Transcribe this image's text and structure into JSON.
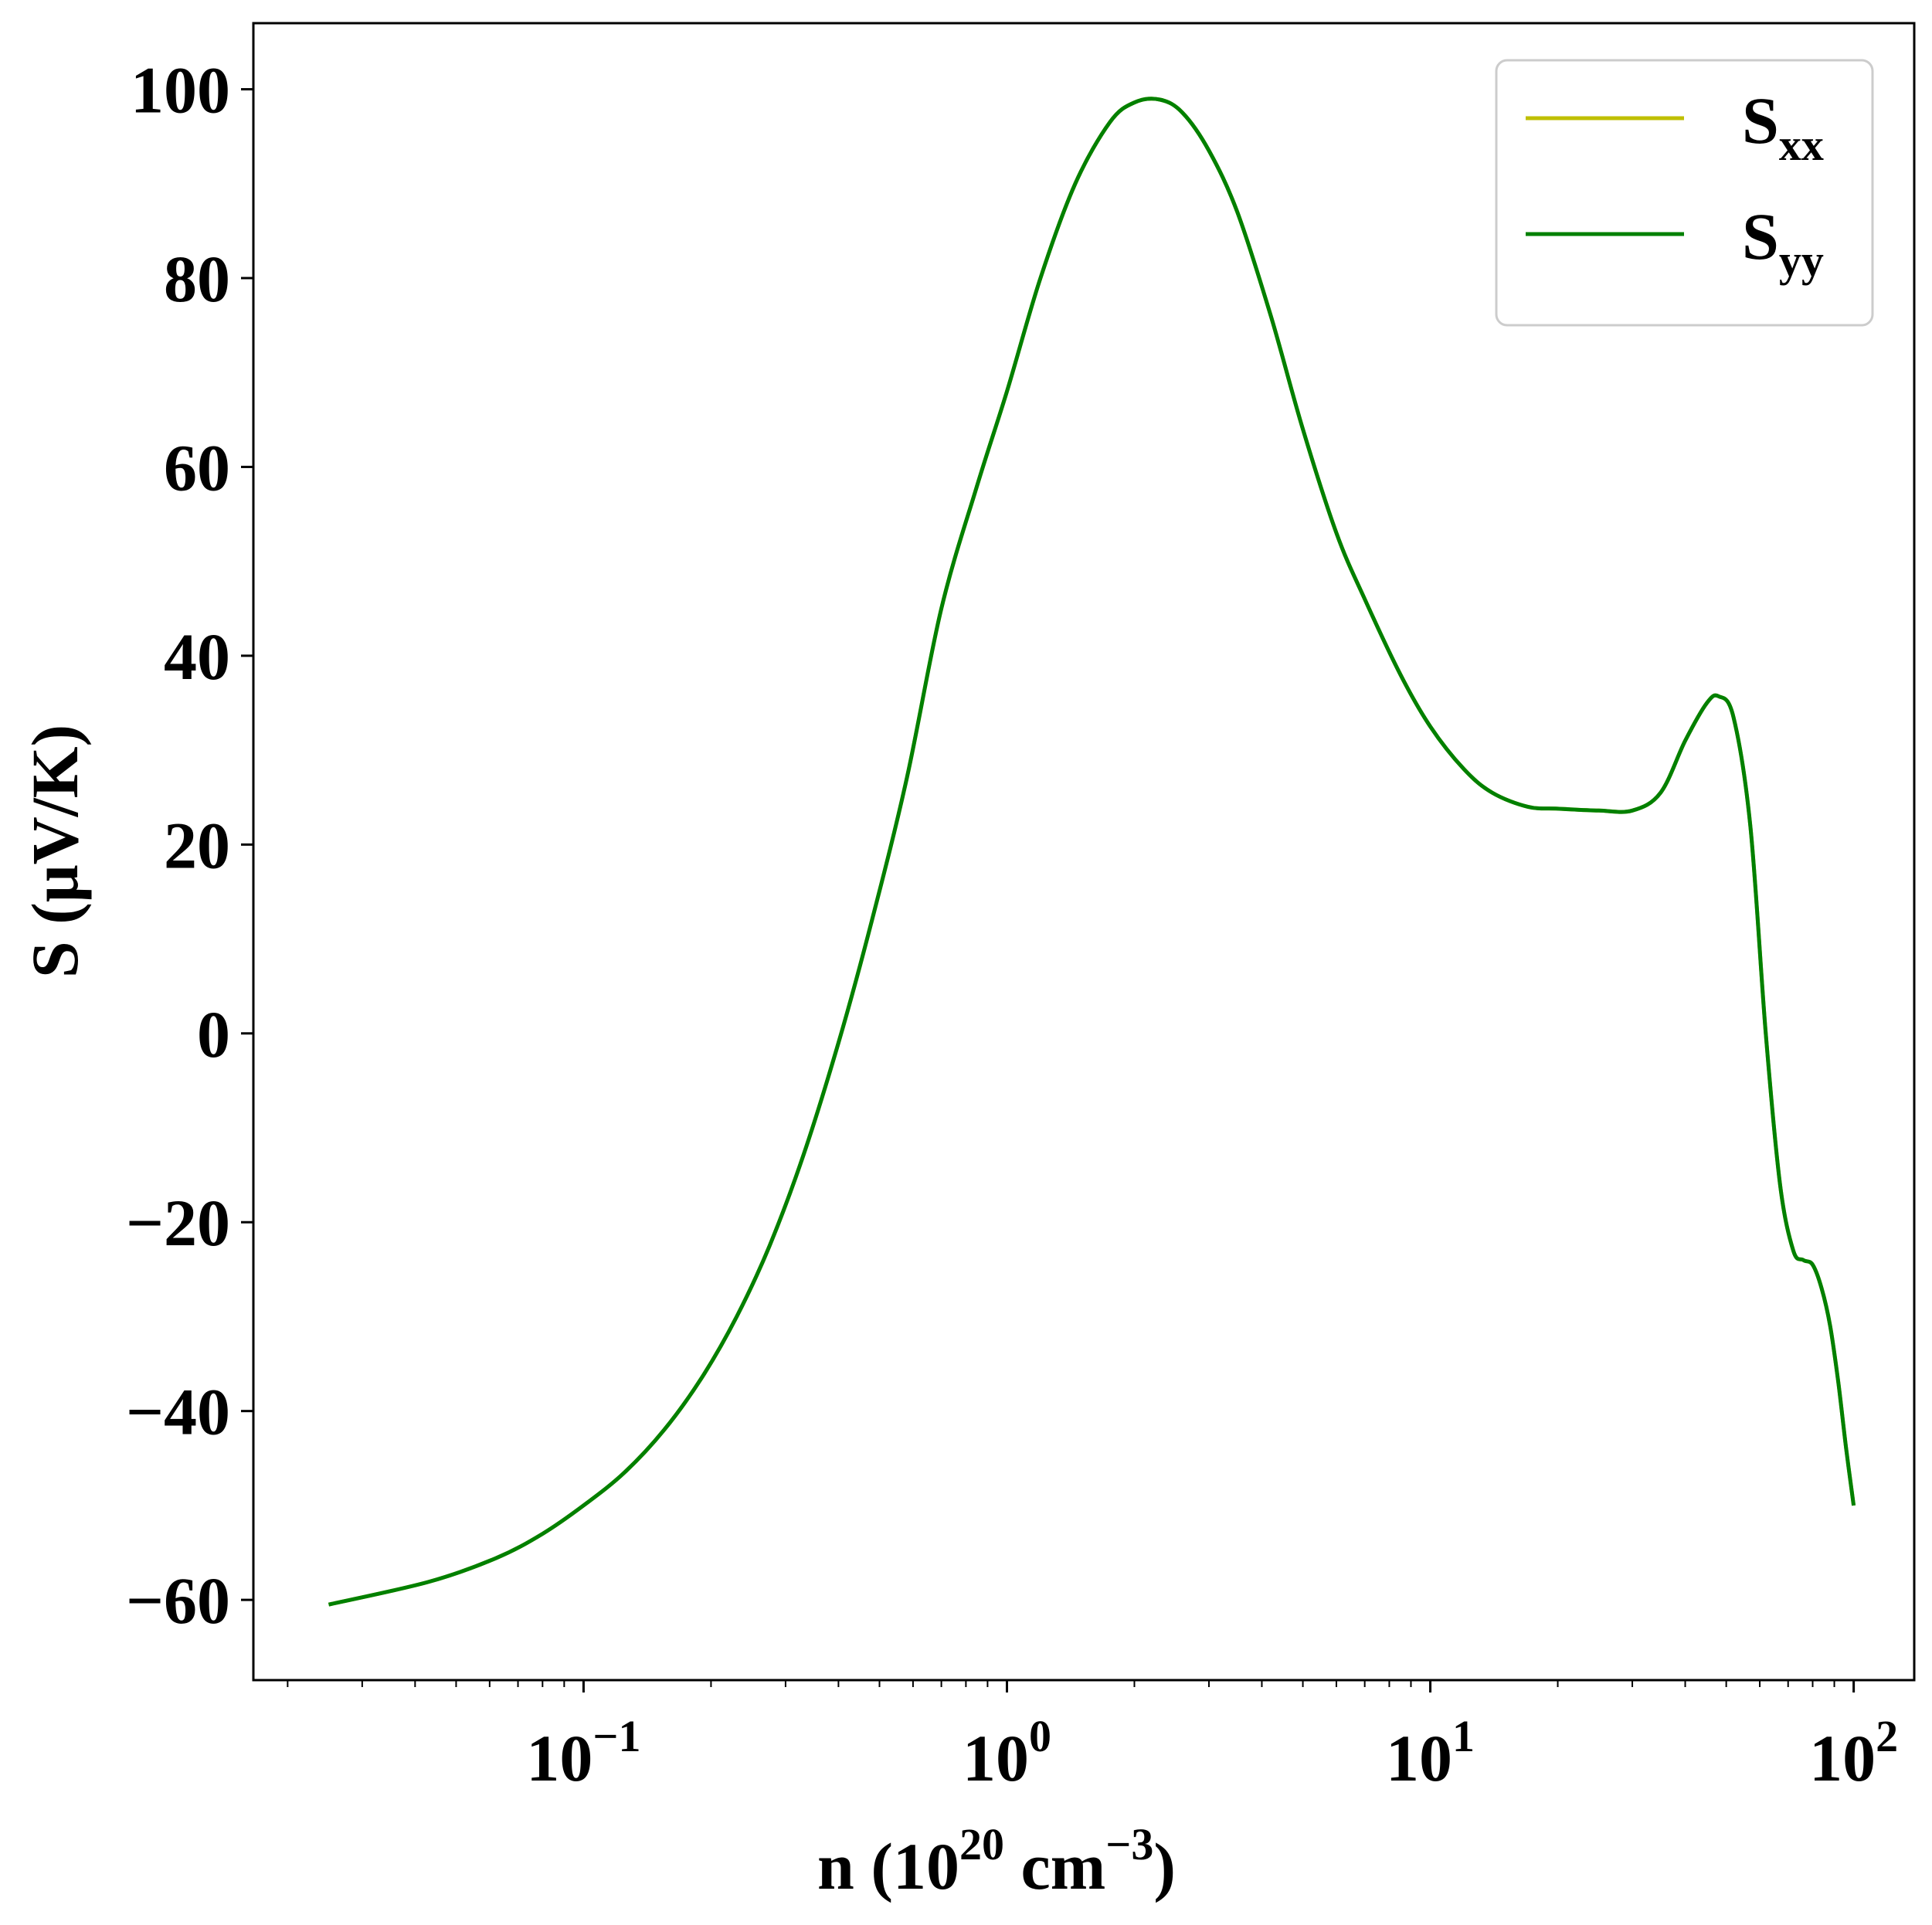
{
  "chart_data": {
    "type": "line",
    "xlabel": "n (10",
    "xlabel_sup1": "20",
    "xlabel_mid": " cm",
    "xlabel_sup2": "−3",
    "xlabel_end": ")",
    "ylabel": "S (μV/K)",
    "x_scale": "log",
    "xlim": [
      0.0166,
      139
    ],
    "ylim": [
      -68.5,
      107
    ],
    "grid": false,
    "legend_position": "top-right",
    "x_ticks": [
      {
        "value": 0.1,
        "base": "10",
        "exp": "−1"
      },
      {
        "value": 1,
        "base": "10",
        "exp": "0"
      },
      {
        "value": 10,
        "base": "10",
        "exp": "1"
      },
      {
        "value": 100,
        "base": "10",
        "exp": "2"
      }
    ],
    "y_ticks": [
      {
        "value": 100,
        "label": "100"
      },
      {
        "value": 80,
        "label": "80"
      },
      {
        "value": 60,
        "label": "60"
      },
      {
        "value": 40,
        "label": "40"
      },
      {
        "value": 20,
        "label": "20"
      },
      {
        "value": 0,
        "label": "0"
      },
      {
        "value": -20,
        "label": "−20"
      },
      {
        "value": -40,
        "label": "−40"
      },
      {
        "value": -60,
        "label": "−60"
      }
    ],
    "x": [
      0.025,
      0.043,
      0.062,
      0.08,
      0.1,
      0.125,
      0.155,
      0.19,
      0.23,
      0.275,
      0.33,
      0.4,
      0.48,
      0.58,
      0.7,
      0.85,
      1.0,
      1.2,
      1.45,
      1.75,
      2.0,
      2.3,
      2.6,
      3.0,
      3.5,
      4.2,
      5.0,
      6.0,
      7.0,
      8.5,
      10.0,
      12.0,
      14.0,
      17.0,
      20.0,
      25.0,
      30.0,
      35.0,
      40.0,
      45.0,
      48.0,
      52.0,
      57.0,
      62.0,
      67.0,
      72.0,
      76.0,
      80.0,
      84.0,
      88.0,
      92.0,
      96.0,
      100.0
    ],
    "series": [
      {
        "name": "S",
        "name_sub": "xx",
        "color": "#bfbf00",
        "values": [
          -60.5,
          -58.1,
          -55.6,
          -53.0,
          -50.0,
          -46.5,
          -42.0,
          -36.5,
          -30.0,
          -22.5,
          -13.0,
          -1.0,
          12.0,
          27.0,
          45.0,
          58.0,
          68.0,
          80.0,
          90.0,
          96.5,
          98.6,
          98.9,
          97.5,
          93.5,
          87.0,
          76.0,
          64.0,
          53.0,
          46.0,
          38.0,
          32.5,
          28.0,
          25.5,
          24.0,
          23.8,
          23.6,
          23.6,
          25.5,
          31.0,
          35.0,
          35.7,
          33.5,
          22.0,
          0.0,
          -16.0,
          -23.0,
          -24.0,
          -24.5,
          -27.0,
          -31.0,
          -37.0,
          -44.0,
          -50.0
        ]
      },
      {
        "name": "S",
        "name_sub": "yy",
        "color": "#008000",
        "values": [
          -60.5,
          -58.1,
          -55.6,
          -53.0,
          -50.0,
          -46.5,
          -42.0,
          -36.5,
          -30.0,
          -22.5,
          -13.0,
          -1.0,
          12.0,
          27.0,
          45.0,
          58.0,
          68.0,
          80.0,
          90.0,
          96.5,
          98.6,
          98.9,
          97.5,
          93.5,
          87.0,
          76.0,
          64.0,
          53.0,
          46.0,
          38.0,
          32.5,
          28.0,
          25.5,
          24.0,
          23.8,
          23.6,
          23.6,
          25.5,
          31.0,
          35.0,
          35.7,
          33.5,
          22.0,
          0.0,
          -16.0,
          -23.0,
          -24.0,
          -24.5,
          -27.0,
          -31.0,
          -37.0,
          -44.0,
          -50.0
        ]
      }
    ]
  }
}
